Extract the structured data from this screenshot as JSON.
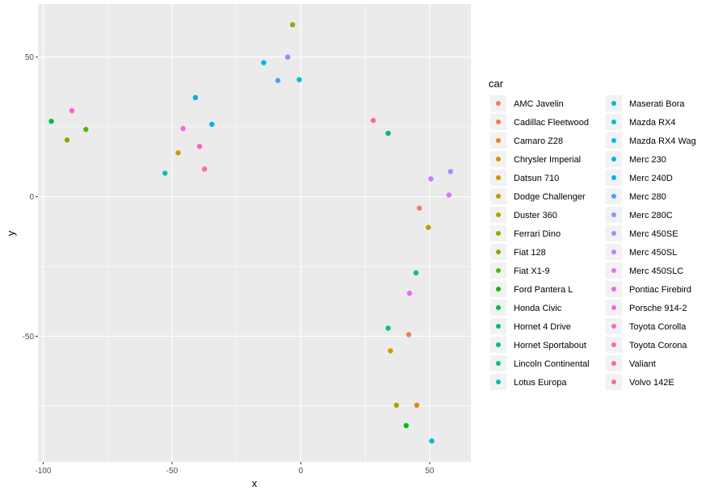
{
  "chart_data": {
    "type": "scatter",
    "xlabel": "x",
    "ylabel": "y",
    "xlim": [
      -102,
      66
    ],
    "ylim": [
      -95,
      69
    ],
    "x_ticks": [
      -100,
      -50,
      0,
      50
    ],
    "y_ticks": [
      -50,
      0,
      50
    ],
    "x_tick_labels": [
      "-100",
      "-50",
      "0",
      "50"
    ],
    "y_tick_labels": [
      "-50",
      "0",
      "50"
    ],
    "grid": true,
    "legend": {
      "title": "car",
      "placement": "right",
      "columns": 2
    },
    "cars": [
      "AMC Javelin",
      "Cadillac Fleetwood",
      "Camaro Z28",
      "Chrysler Imperial",
      "Datsun 710",
      "Dodge Challenger",
      "Duster 360",
      "Ferrari Dino",
      "Fiat 128",
      "Fiat X1-9",
      "Ford Pantera L",
      "Honda Civic",
      "Hornet 4 Drive",
      "Hornet Sportabout",
      "Lincoln Continental",
      "Lotus Europa",
      "Maserati Bora",
      "Mazda RX4",
      "Mazda RX4 Wag",
      "Merc 230",
      "Merc 240D",
      "Merc 280",
      "Merc 280C",
      "Merc 450SE",
      "Merc 450SL",
      "Merc 450SLC",
      "Pontiac Firebird",
      "Porsche 914-2",
      "Toyota Corolla",
      "Toyota Corona",
      "Valiant",
      "Volvo 142E"
    ],
    "points": [
      {
        "car": "AMC Javelin",
        "x": 46.0,
        "y": -4.1
      },
      {
        "car": "Cadillac Fleetwood",
        "x": 41.9,
        "y": -49.4
      },
      {
        "car": "Camaro Z28",
        "x": 45.0,
        "y": -74.7
      },
      {
        "car": "Chrysler Imperial",
        "x": 34.8,
        "y": -55.2
      },
      {
        "car": "Datsun 710",
        "x": -47.6,
        "y": 15.7
      },
      {
        "car": "Dodge Challenger",
        "x": 49.5,
        "y": -11.0
      },
      {
        "car": "Duster 360",
        "x": 37.1,
        "y": -74.7
      },
      {
        "car": "Ferrari Dino",
        "x": -3.2,
        "y": 61.6
      },
      {
        "car": "Fiat 128",
        "x": -90.7,
        "y": 20.3
      },
      {
        "car": "Fiat X1-9",
        "x": -83.4,
        "y": 24.1
      },
      {
        "car": "Ford Pantera L",
        "x": 40.9,
        "y": -82.0
      },
      {
        "car": "Honda Civic",
        "x": -96.8,
        "y": 27.0
      },
      {
        "car": "Hornet 4 Drive",
        "x": 33.9,
        "y": 22.7
      },
      {
        "car": "Hornet Sportabout",
        "x": 44.7,
        "y": -27.3
      },
      {
        "car": "Lincoln Continental",
        "x": 33.9,
        "y": -47.1
      },
      {
        "car": "Lotus Europa",
        "x": -52.7,
        "y": 8.4
      },
      {
        "car": "Maserati Bora",
        "x": 50.8,
        "y": -87.5
      },
      {
        "car": "Mazda RX4",
        "x": -0.6,
        "y": 41.9
      },
      {
        "car": "Mazda RX4 Wag",
        "x": -14.4,
        "y": 48.0
      },
      {
        "car": "Merc 230",
        "x": -34.5,
        "y": 25.9
      },
      {
        "car": "Merc 240D",
        "x": -40.9,
        "y": 35.5
      },
      {
        "car": "Merc 280",
        "x": -8.9,
        "y": 41.6
      },
      {
        "car": "Merc 280C",
        "x": -5.1,
        "y": 50.0
      },
      {
        "car": "Merc 450SE",
        "x": 58.1,
        "y": 9.0
      },
      {
        "car": "Merc 450SL",
        "x": 50.5,
        "y": 6.4
      },
      {
        "car": "Merc 450SLC",
        "x": 57.5,
        "y": 0.6
      },
      {
        "car": "Pontiac Firebird",
        "x": 42.2,
        "y": -34.6
      },
      {
        "car": "Porsche 914-2",
        "x": -45.7,
        "y": 24.4
      },
      {
        "car": "Toyota Corolla",
        "x": -88.8,
        "y": 30.8
      },
      {
        "car": "Toyota Corona",
        "x": -39.3,
        "y": 18.0
      },
      {
        "car": "Valiant",
        "x": 28.1,
        "y": 27.3
      },
      {
        "car": "Volvo 142E",
        "x": -37.4,
        "y": 9.9
      }
    ]
  }
}
